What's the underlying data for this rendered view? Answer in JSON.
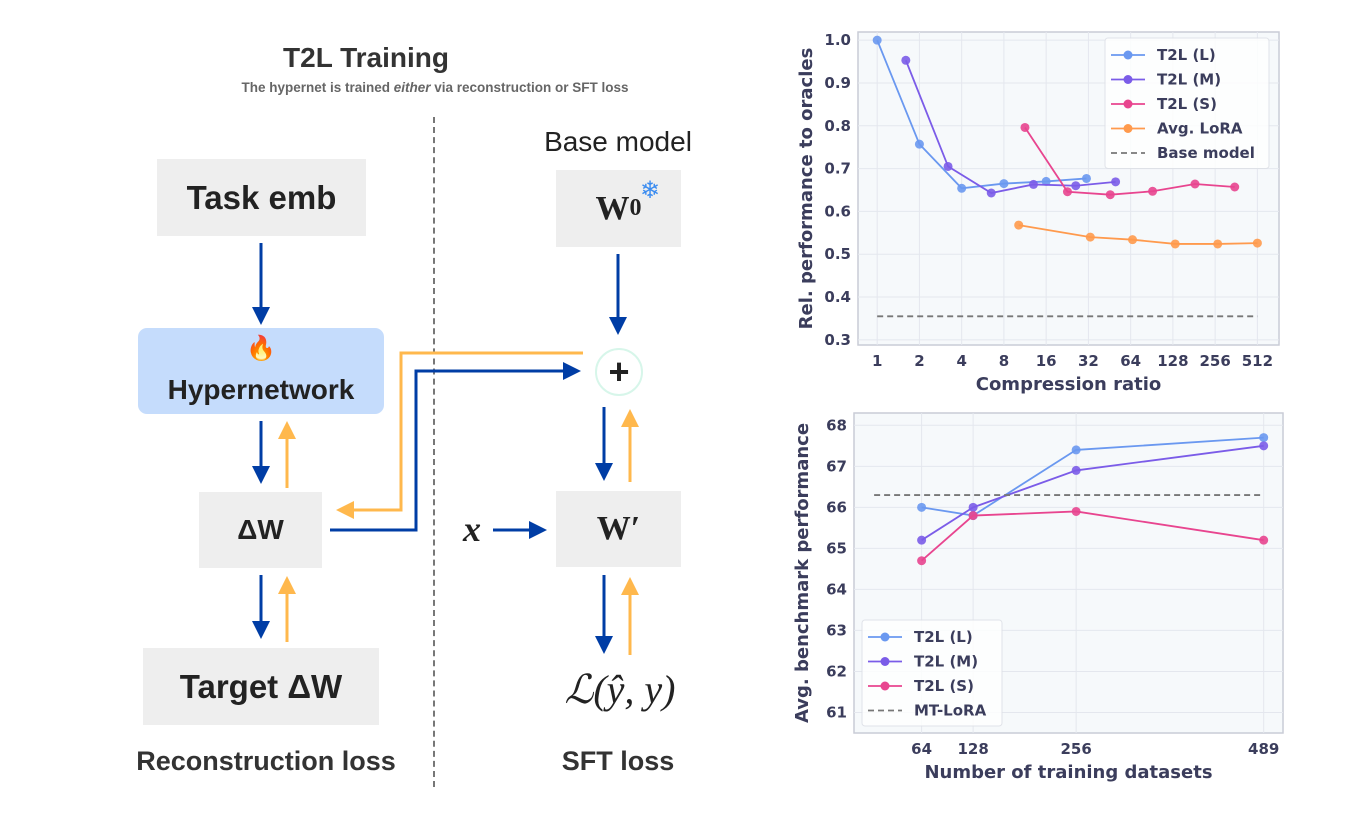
{
  "diagram": {
    "title": "T2L Training",
    "subtitle_pre": "The hypernet is trained ",
    "subtitle_em": "either",
    "subtitle_post": " via reconstruction or SFT loss",
    "task_emb": "Task emb",
    "hypernetwork": "Hypernetwork",
    "hypernetwork_icon": "fire-icon",
    "delta_w": "ΔW",
    "target_delta_w": "Target ΔW",
    "reconstruction_loss": "Reconstruction loss",
    "base_model": "Base model",
    "w0": "W",
    "w0_sub": "0",
    "w0_icon": "snowflake-icon",
    "plus": "+",
    "x_input": "x",
    "w_prime": "W′",
    "loss_expr": "ℒ(ŷ, y)",
    "sft_loss": "SFT loss",
    "colors": {
      "forward": "#003da5",
      "backward": "#ffb84d",
      "hypernet_bg": "#c5dcfc",
      "box_bg": "#eeeeee"
    }
  },
  "chart_data": [
    {
      "type": "line",
      "xlabel": "Compression ratio",
      "ylabel": "Rel. performance to oracles",
      "xscale": "log2",
      "xticks": [
        1,
        2,
        4,
        8,
        16,
        32,
        64,
        128,
        256,
        512
      ],
      "yticks": [
        0.3,
        0.4,
        0.5,
        0.6,
        0.7,
        0.8,
        0.9,
        1.0
      ],
      "ytick_labels": [
        "0.3",
        "0.4",
        "0.5",
        "0.6",
        "0.7",
        "0.8",
        "0.9",
        "1.0"
      ],
      "xlim": [
        0.73,
        730
      ],
      "ylim": [
        0.288,
        1.019
      ],
      "grid": true,
      "legend": "top-right",
      "series": [
        {
          "name": "T2L (L)",
          "color": "#6a98f0",
          "x": [
            1,
            2,
            4,
            8,
            16,
            31
          ],
          "y": [
            1.0,
            0.757,
            0.654,
            0.665,
            0.67,
            0.677
          ]
        },
        {
          "name": "T2L (M)",
          "color": "#7b5ce8",
          "x": [
            1.6,
            3.2,
            6.5,
            13,
            26,
            50
          ],
          "y": [
            0.953,
            0.705,
            0.643,
            0.663,
            0.66,
            0.669
          ]
        },
        {
          "name": "T2L (S)",
          "color": "#e8458f",
          "x": [
            11.3,
            22.7,
            45.8,
            91.7,
            184,
            353
          ],
          "y": [
            0.796,
            0.646,
            0.639,
            0.647,
            0.664,
            0.657
          ]
        },
        {
          "name": "Avg. LoRA",
          "color": "#ff9a4d",
          "x": [
            10.2,
            33,
            66,
            133,
            267,
            512
          ],
          "y": [
            0.568,
            0.54,
            0.534,
            0.524,
            0.524,
            0.526
          ]
        },
        {
          "name": "Base model",
          "color": "#777777",
          "dashed": true,
          "x": [
            1,
            512
          ],
          "y": [
            0.355,
            0.355
          ]
        }
      ]
    },
    {
      "type": "line",
      "xlabel": "Number of training datasets",
      "ylabel": "Avg. benchmark performance",
      "xscale": "linear",
      "xticks": [
        64,
        128,
        256,
        489
      ],
      "yticks": [
        61,
        62,
        63,
        64,
        65,
        66,
        67,
        68
      ],
      "ytick_labels": [
        "61",
        "62",
        "63",
        "64",
        "65",
        "66",
        "67",
        "68"
      ],
      "xlim": [
        -20,
        513
      ],
      "ylim": [
        60.5,
        68.3
      ],
      "grid": true,
      "legend": "bottom-left",
      "series": [
        {
          "name": "T2L (L)",
          "color": "#6a98f0",
          "x": [
            64,
            128,
            256,
            489
          ],
          "y": [
            66.0,
            65.8,
            67.4,
            67.7
          ]
        },
        {
          "name": "T2L (M)",
          "color": "#7b5ce8",
          "x": [
            64,
            128,
            256,
            489
          ],
          "y": [
            65.2,
            66.0,
            66.9,
            67.5
          ]
        },
        {
          "name": "T2L (S)",
          "color": "#e8458f",
          "x": [
            64,
            128,
            256,
            489
          ],
          "y": [
            64.7,
            65.8,
            65.9,
            65.2
          ]
        },
        {
          "name": "MT-LoRA",
          "color": "#777777",
          "dashed": true,
          "x": [
            5,
            489
          ],
          "y": [
            66.3,
            66.3
          ]
        }
      ]
    }
  ]
}
